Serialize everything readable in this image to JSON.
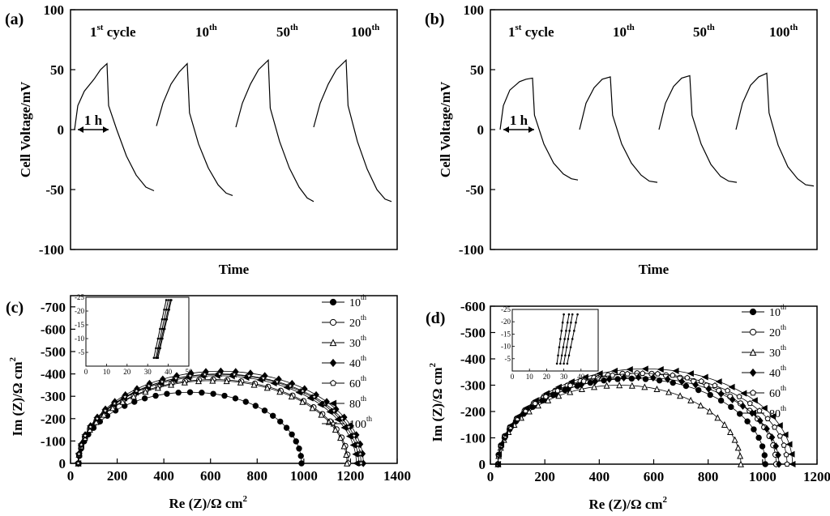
{
  "chart_data": [
    {
      "panel": "(a)",
      "type": "line",
      "ylabel": "Cell Voltage/mV",
      "xlabel": "Time",
      "ylim": [
        -100,
        100
      ],
      "yticks": [
        -100,
        -50,
        0,
        50,
        100
      ],
      "cycle_labels": [
        {
          "num": "1",
          "sup": "st",
          "rest": " cycle"
        },
        {
          "num": "10",
          "sup": "th",
          "rest": ""
        },
        {
          "num": "50",
          "sup": "th",
          "rest": ""
        },
        {
          "num": "100",
          "sup": "th",
          "rest": ""
        }
      ],
      "duration_label": "1 h",
      "cycles": [
        {
          "charge": [
            [
              0,
              0
            ],
            [
              0.1,
              20
            ],
            [
              0.3,
              32
            ],
            [
              0.6,
              42
            ],
            [
              0.8,
              50
            ],
            [
              1.0,
              55
            ]
          ],
          "discharge": [
            [
              1.0,
              55
            ],
            [
              1.05,
              20
            ],
            [
              1.3,
              0
            ],
            [
              1.6,
              -22
            ],
            [
              1.9,
              -38
            ],
            [
              2.2,
              -48
            ],
            [
              2.45,
              -51
            ]
          ]
        },
        {
          "charge": [
            [
              0,
              3
            ],
            [
              0.2,
              22
            ],
            [
              0.45,
              38
            ],
            [
              0.7,
              48
            ],
            [
              0.95,
              55
            ]
          ],
          "discharge": [
            [
              0.95,
              55
            ],
            [
              1.02,
              14
            ],
            [
              1.3,
              -12
            ],
            [
              1.6,
              -32
            ],
            [
              1.9,
              -46
            ],
            [
              2.15,
              -53
            ],
            [
              2.35,
              -55
            ]
          ]
        },
        {
          "charge": [
            [
              0,
              2
            ],
            [
              0.2,
              22
            ],
            [
              0.45,
              38
            ],
            [
              0.7,
              50
            ],
            [
              1.0,
              58
            ]
          ],
          "discharge": [
            [
              1.0,
              58
            ],
            [
              1.06,
              18
            ],
            [
              1.35,
              -10
            ],
            [
              1.65,
              -32
            ],
            [
              1.95,
              -48
            ],
            [
              2.2,
              -57
            ],
            [
              2.4,
              -60
            ]
          ]
        },
        {
          "charge": [
            [
              0,
              2
            ],
            [
              0.2,
              22
            ],
            [
              0.45,
              38
            ],
            [
              0.7,
              50
            ],
            [
              1.0,
              58
            ]
          ],
          "discharge": [
            [
              1.0,
              58
            ],
            [
              1.06,
              20
            ],
            [
              1.35,
              -10
            ],
            [
              1.65,
              -33
            ],
            [
              1.95,
              -50
            ],
            [
              2.2,
              -58
            ],
            [
              2.4,
              -60
            ]
          ]
        }
      ]
    },
    {
      "panel": "(b)",
      "type": "line",
      "ylabel": "Cell Voltage/mV",
      "xlabel": "Time",
      "ylim": [
        -100,
        100
      ],
      "yticks": [
        -100,
        -50,
        0,
        50,
        100
      ],
      "cycle_labels": [
        {
          "num": "1",
          "sup": "st",
          "rest": " cycle"
        },
        {
          "num": "10",
          "sup": "th",
          "rest": ""
        },
        {
          "num": "50",
          "sup": "th",
          "rest": ""
        },
        {
          "num": "100",
          "sup": "th",
          "rest": ""
        }
      ],
      "duration_label": "1 h",
      "cycles": [
        {
          "charge": [
            [
              0,
              0
            ],
            [
              0.1,
              20
            ],
            [
              0.3,
              33
            ],
            [
              0.6,
              40
            ],
            [
              0.8,
              42
            ],
            [
              1.0,
              43
            ]
          ],
          "discharge": [
            [
              1.0,
              43
            ],
            [
              1.06,
              12
            ],
            [
              1.35,
              -12
            ],
            [
              1.65,
              -28
            ],
            [
              1.95,
              -37
            ],
            [
              2.2,
              -41
            ],
            [
              2.4,
              -42
            ]
          ]
        },
        {
          "charge": [
            [
              0,
              0
            ],
            [
              0.2,
              22
            ],
            [
              0.45,
              35
            ],
            [
              0.7,
              42
            ],
            [
              0.95,
              44
            ]
          ],
          "discharge": [
            [
              0.95,
              44
            ],
            [
              1.02,
              12
            ],
            [
              1.3,
              -12
            ],
            [
              1.6,
              -28
            ],
            [
              1.9,
              -38
            ],
            [
              2.15,
              -43
            ],
            [
              2.4,
              -44
            ]
          ]
        },
        {
          "charge": [
            [
              0,
              0
            ],
            [
              0.2,
              22
            ],
            [
              0.45,
              36
            ],
            [
              0.7,
              43
            ],
            [
              0.95,
              45
            ]
          ],
          "discharge": [
            [
              0.95,
              45
            ],
            [
              1.02,
              12
            ],
            [
              1.3,
              -12
            ],
            [
              1.6,
              -29
            ],
            [
              1.9,
              -39
            ],
            [
              2.15,
              -43
            ],
            [
              2.4,
              -44
            ]
          ]
        },
        {
          "charge": [
            [
              0,
              0
            ],
            [
              0.2,
              22
            ],
            [
              0.45,
              37
            ],
            [
              0.7,
              44
            ],
            [
              0.95,
              47
            ]
          ],
          "discharge": [
            [
              0.95,
              47
            ],
            [
              1.02,
              14
            ],
            [
              1.3,
              -13
            ],
            [
              1.6,
              -31
            ],
            [
              1.9,
              -41
            ],
            [
              2.15,
              -46
            ],
            [
              2.4,
              -47
            ]
          ]
        }
      ]
    },
    {
      "panel": "(c)",
      "type": "scatter",
      "xlabel": "Re (Z)/Ω cm",
      "ylabel": "Im (Z)/Ω cm",
      "label_sup": "2",
      "xlim": [
        0,
        1400
      ],
      "ylim": [
        0,
        -750
      ],
      "xticks": [
        0,
        200,
        400,
        600,
        800,
        1000,
        1200,
        1400
      ],
      "yticks": [
        0,
        -100,
        -200,
        -300,
        -400,
        -500,
        -600,
        -700
      ],
      "series": [
        {
          "name": "10",
          "sup": "th",
          "marker": "circle-filled",
          "x0": 35,
          "x1": 990,
          "peak": 318
        },
        {
          "name": "20",
          "sup": "th",
          "marker": "circle-open",
          "x0": 33,
          "x1": 1190,
          "peak": 375
        },
        {
          "name": "30",
          "sup": "th",
          "marker": "triangle-open",
          "x0": 33,
          "x1": 1185,
          "peak": 370
        },
        {
          "name": "40",
          "sup": "th",
          "marker": "diamond-filled",
          "x0": 33,
          "x1": 1255,
          "peak": 412
        },
        {
          "name": "60",
          "sup": "th",
          "marker": "pentagon-open",
          "x0": 33,
          "x1": 1235,
          "peak": 398
        },
        {
          "name": "80",
          "sup": "th",
          "marker": "triangle-left-filled",
          "x0": 33,
          "x1": 1225,
          "peak": 392
        },
        {
          "name": "100",
          "sup": "th",
          "marker": "star-open",
          "x0": 33,
          "x1": 1245,
          "peak": 400
        }
      ],
      "inset": {
        "xlim": [
          0,
          50
        ],
        "ylim": [
          0,
          -25
        ],
        "xticks": [
          0,
          10,
          20,
          30,
          40,
          50
        ],
        "yticks": [
          -5,
          -10,
          -15,
          -20,
          -25
        ],
        "lines": [
          [
            [
              33,
              -3
            ],
            [
              39,
              -24
            ]
          ],
          [
            [
              34,
              -3
            ],
            [
              40,
              -24
            ]
          ],
          [
            [
              34.5,
              -3
            ],
            [
              41,
              -24
            ]
          ],
          [
            [
              35,
              -3
            ],
            [
              41.5,
              -24
            ]
          ]
        ]
      }
    },
    {
      "panel": "(d)",
      "type": "scatter",
      "xlabel": "Re (Z)/Ω cm",
      "ylabel": "Im (Z)/Ω cm",
      "label_sup": "2",
      "xlim": [
        0,
        1200
      ],
      "ylim": [
        0,
        -600
      ],
      "xticks": [
        0,
        200,
        400,
        600,
        800,
        1000,
        1200
      ],
      "yticks": [
        0,
        -100,
        -200,
        -300,
        -400,
        -500,
        -600
      ],
      "series": [
        {
          "name": "10",
          "sup": "th",
          "marker": "circle-filled",
          "x0": 28,
          "x1": 1010,
          "peak": 325
        },
        {
          "name": "20",
          "sup": "th",
          "marker": "circle-open",
          "x0": 28,
          "x1": 1050,
          "peak": 345
        },
        {
          "name": "30",
          "sup": "th",
          "marker": "triangle-open",
          "x0": 28,
          "x1": 920,
          "peak": 300
        },
        {
          "name": "40",
          "sup": "th",
          "marker": "diamond-filled",
          "x0": 28,
          "x1": 1060,
          "peak": 330
        },
        {
          "name": "60",
          "sup": "th",
          "marker": "pentagon-open",
          "x0": 28,
          "x1": 1090,
          "peak": 345
        },
        {
          "name": "80",
          "sup": "th",
          "marker": "triangle-left-filled",
          "x0": 28,
          "x1": 1110,
          "peak": 362
        }
      ],
      "inset": {
        "xlim": [
          0,
          50
        ],
        "ylim": [
          0,
          -25
        ],
        "xticks": [
          0,
          10,
          20,
          30,
          40,
          50
        ],
        "yticks": [
          -5,
          -10,
          -15,
          -20,
          -25
        ],
        "lines": [
          [
            [
              26,
              -3
            ],
            [
              30,
              -23
            ]
          ],
          [
            [
              28,
              -3
            ],
            [
              33,
              -23
            ]
          ],
          [
            [
              30,
              -3
            ],
            [
              35,
              -23
            ]
          ],
          [
            [
              32,
              -3
            ],
            [
              38,
              -23
            ]
          ]
        ]
      }
    }
  ]
}
